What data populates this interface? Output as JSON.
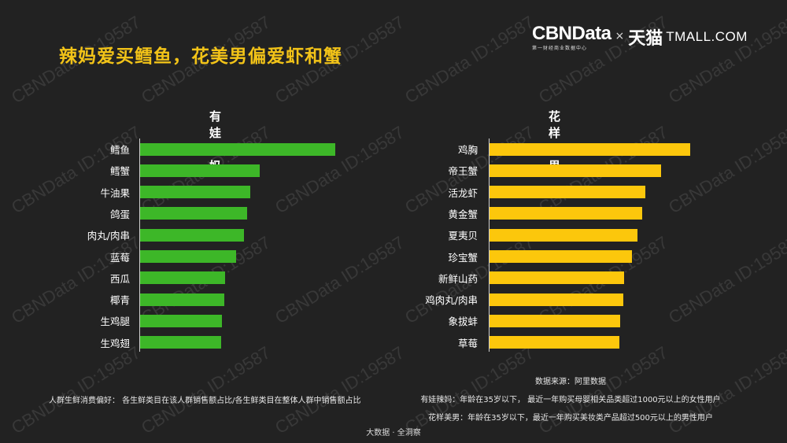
{
  "header": {
    "title": "辣妈爱买鳕鱼，花美男偏爱虾和蟹",
    "logo": {
      "cbn_name": "CBNData",
      "cbn_subtitle": "第一财经商业数据中心",
      "times": "×",
      "tmall_cn": "天猫",
      "tmall_en": "TMALL.COM"
    }
  },
  "watermark_text": "CBNData ID:19587",
  "colors": {
    "background": "#222222",
    "title": "#f2c318",
    "series_left": "#3db728",
    "series_right": "#fcc70c"
  },
  "chart_data": [
    {
      "type": "bar",
      "orientation": "horizontal",
      "title": "有娃辣妈",
      "categories": [
        "鳕鱼",
        "鳕蟹",
        "牛油果",
        "鸽蛋",
        "肉丸/肉串",
        "蓝莓",
        "西瓜",
        "椰青",
        "生鸡腿",
        "生鸡翅"
      ],
      "values": [
        248,
        152,
        140,
        136,
        132,
        122,
        108,
        107,
        104,
        103
      ],
      "value_note": "relative bar lengths (no axis scale shown)",
      "color": "#3db728",
      "xlabel": "",
      "ylabel": "",
      "grid": false,
      "legend": null
    },
    {
      "type": "bar",
      "orientation": "horizontal",
      "title": "花样美男",
      "categories": [
        "鸡胸",
        "帝王蟹",
        "活龙虾",
        "黄金蟹",
        "夏夷贝",
        "珍宝蟹",
        "新鲜山药",
        "鸡肉丸/肉串",
        "象拔蚌",
        "草莓"
      ],
      "values": [
        255,
        218,
        198,
        194,
        188,
        181,
        171,
        170,
        166,
        165
      ],
      "value_note": "relative bar lengths (no axis scale shown)",
      "color": "#fcc70c",
      "xlabel": "",
      "ylabel": "",
      "grid": false,
      "legend": null
    }
  ],
  "notes": {
    "preference_definition": "人群生鲜消费偏好：  各生鲜类目在该人群销售额占比/各生鲜类目在整体人群中销售额占比",
    "source": "数据来源：阿里数据",
    "moms_definition": "有娃辣妈：年龄在35岁以下，  最近一年购买母婴相关品类超过1000元以上的女性用户",
    "men_definition": "花样美男：年龄在35岁以下，最近一年购买美妆类产品超过500元以上的男性用户"
  },
  "footer": "大数据 · 全洞察"
}
